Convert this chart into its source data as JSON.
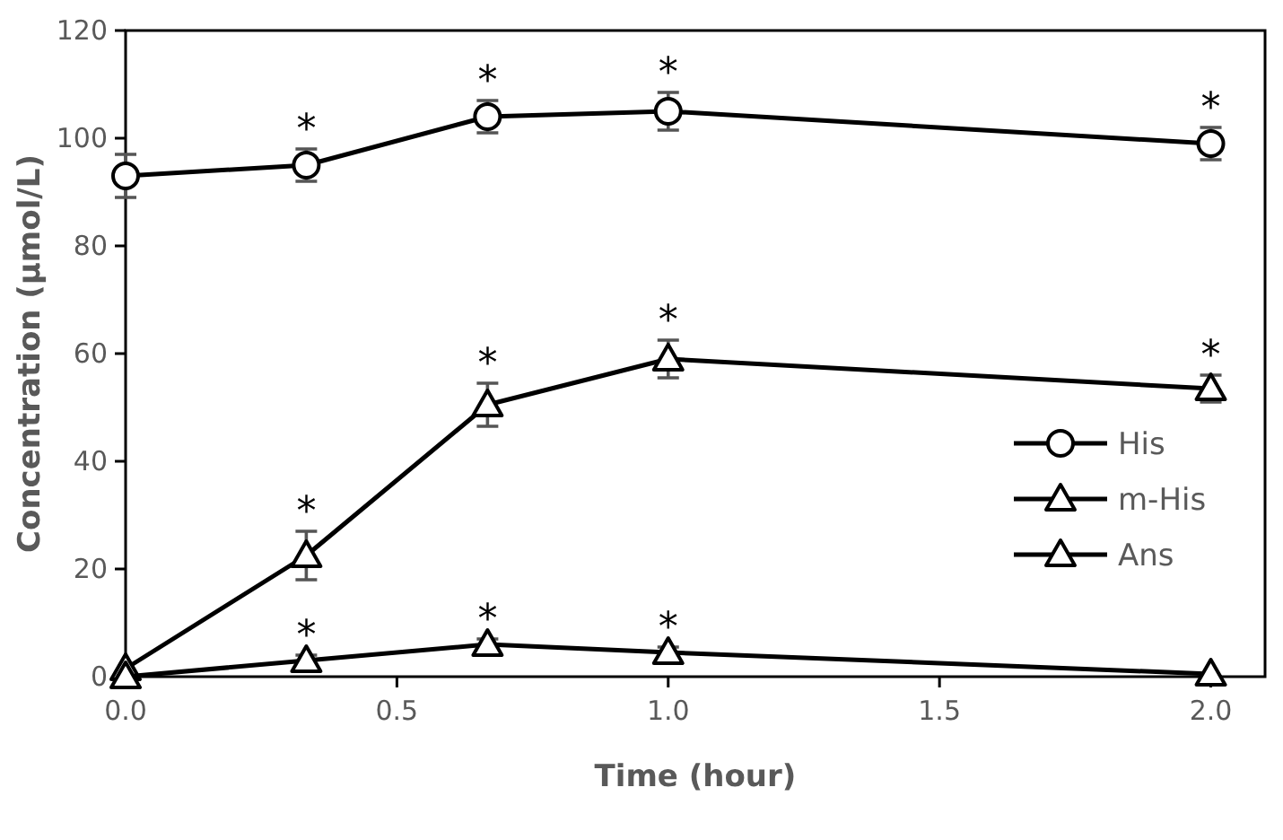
{
  "chart_data": {
    "type": "line",
    "xlabel": "Time (hour)",
    "ylabel": "Concentration (μmol/L)",
    "xlim": [
      0,
      2.1
    ],
    "xticks": [
      {
        "value": 0,
        "label": "0.0"
      },
      {
        "value": 0.5,
        "label": "0.5"
      },
      {
        "value": 1,
        "label": "1.0"
      },
      {
        "value": 1.5,
        "label": "1.5"
      },
      {
        "value": 2,
        "label": "2.0"
      }
    ],
    "ylim": [
      0,
      120
    ],
    "yticks": [
      0,
      20,
      40,
      60,
      80,
      100,
      120
    ],
    "grid": false,
    "legend": "bottom right",
    "line_style": "solid",
    "series": [
      {
        "name": "His",
        "color": "#000000",
        "marker": "circle",
        "x": [
          0,
          0.333,
          0.667,
          1,
          2
        ],
        "values": [
          93,
          95,
          104,
          105,
          99
        ],
        "errors": [
          4,
          3,
          3,
          3.5,
          3
        ]
      },
      {
        "name": "m-His",
        "color": "#000000",
        "marker": "triangle",
        "x": [
          0,
          0.333,
          0.667,
          1,
          2
        ],
        "values": [
          1.5,
          22.5,
          50.5,
          59,
          53.5
        ],
        "errors": [
          null,
          4.5,
          4,
          3.5,
          2.5
        ]
      },
      {
        "name": "Ans",
        "color": "#000000",
        "marker": "triangle",
        "x": [
          0,
          0.333,
          0.667,
          1,
          2
        ],
        "values": [
          0,
          3,
          6,
          4.5,
          0.5
        ],
        "errors": [
          null,
          1,
          1,
          1,
          null
        ]
      }
    ],
    "annotations": [
      "*",
      "*",
      "*",
      "*",
      "*",
      "*",
      "*",
      "*",
      "*",
      "*",
      "*"
    ]
  }
}
